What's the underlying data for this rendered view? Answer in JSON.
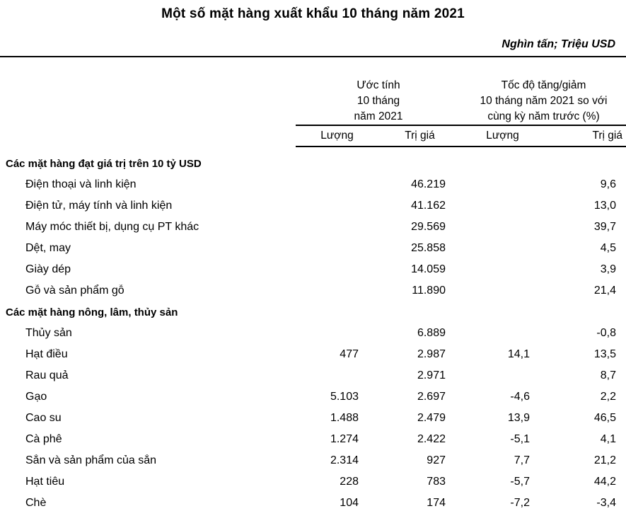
{
  "chart_data": {
    "type": "table",
    "title": "Một số mặt hàng xuất khẩu 10 tháng năm 2021",
    "unit_note": "Nghìn tấn; Triệu USD",
    "column_groups": [
      {
        "lines": [
          "Ước tính",
          "10 tháng",
          "năm 2021"
        ]
      },
      {
        "lines": [
          "Tốc độ tăng/giảm",
          "10 tháng năm 2021 so với",
          "cùng kỳ năm trước (%)"
        ]
      }
    ],
    "columns": [
      "Lượng",
      "Trị giá",
      "Lượng",
      "Trị giá"
    ],
    "sections": [
      {
        "label": "Các mặt hàng đạt giá trị trên 10 tỷ USD",
        "rows": [
          {
            "name": "Điện thoại và linh kiện",
            "values": [
              "",
              "46.219",
              "",
              "9,6"
            ]
          },
          {
            "name": "Điện tử, máy tính và linh kiện",
            "values": [
              "",
              "41.162",
              "",
              "13,0"
            ]
          },
          {
            "name": "Máy móc thiết bị, dụng cụ PT khác",
            "values": [
              "",
              "29.569",
              "",
              "39,7"
            ]
          },
          {
            "name": "Dệt, may",
            "values": [
              "",
              "25.858",
              "",
              "4,5"
            ]
          },
          {
            "name": "Giày dép",
            "values": [
              "",
              "14.059",
              "",
              "3,9"
            ]
          },
          {
            "name": "Gỗ và sản phẩm gỗ",
            "values": [
              "",
              "11.890",
              "",
              "21,4"
            ]
          }
        ]
      },
      {
        "label": "Các mặt hàng nông, lâm, thủy sản",
        "rows": [
          {
            "name": "Thủy sản",
            "values": [
              "",
              "6.889",
              "",
              "-0,8"
            ]
          },
          {
            "name": "Hạt điều",
            "values": [
              "477",
              "2.987",
              "14,1",
              "13,5"
            ]
          },
          {
            "name": "Rau quả",
            "values": [
              "",
              "2.971",
              "",
              "8,7"
            ]
          },
          {
            "name": "Gạo",
            "values": [
              "5.103",
              "2.697",
              "-4,6",
              "2,2"
            ]
          },
          {
            "name": "Cao su",
            "values": [
              "1.488",
              "2.479",
              "13,9",
              "46,5"
            ]
          },
          {
            "name": "Cà phê",
            "values": [
              "1.274",
              "2.422",
              "-5,1",
              "4,1"
            ]
          },
          {
            "name": "Sắn và sản phẩm của sắn",
            "values": [
              "2.314",
              "927",
              "7,7",
              "21,2"
            ]
          },
          {
            "name": "Hạt tiêu",
            "values": [
              "228",
              "783",
              "-5,7",
              "44,2"
            ]
          },
          {
            "name": "Chè",
            "values": [
              "104",
              "174",
              "-7,2",
              "-3,4"
            ]
          }
        ]
      }
    ]
  }
}
